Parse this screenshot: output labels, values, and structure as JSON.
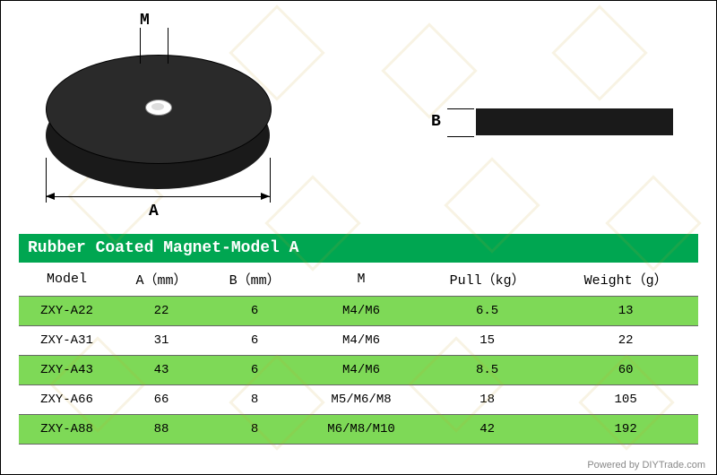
{
  "title": "Rubber Coated Magnet-Model A",
  "dimensions": {
    "M": "M",
    "A": "A",
    "B": "B"
  },
  "columns": [
    "Model",
    "A（mm）",
    "B（mm）",
    "M",
    "Pull（kg）",
    "Weight（g）"
  ],
  "rows": [
    [
      "ZXY-A22",
      "22",
      "6",
      "M4/M6",
      "6.5",
      "13"
    ],
    [
      "ZXY-A31",
      "31",
      "6",
      "M4/M6",
      "15",
      "22"
    ],
    [
      "ZXY-A43",
      "43",
      "6",
      "M4/M6",
      "8.5",
      "60"
    ],
    [
      "ZXY-A66",
      "66",
      "8",
      "M5/M6/M8",
      "18",
      "105"
    ],
    [
      "ZXY-A88",
      "88",
      "8",
      "M6/M8/M10",
      "42",
      "192"
    ]
  ],
  "footer": "Powered by DIYTrade.com",
  "colors": {
    "title_bg": "#00a651",
    "row_odd": "#7ed957",
    "row_even": "#ffffff",
    "shape": "#1a1a1a"
  }
}
